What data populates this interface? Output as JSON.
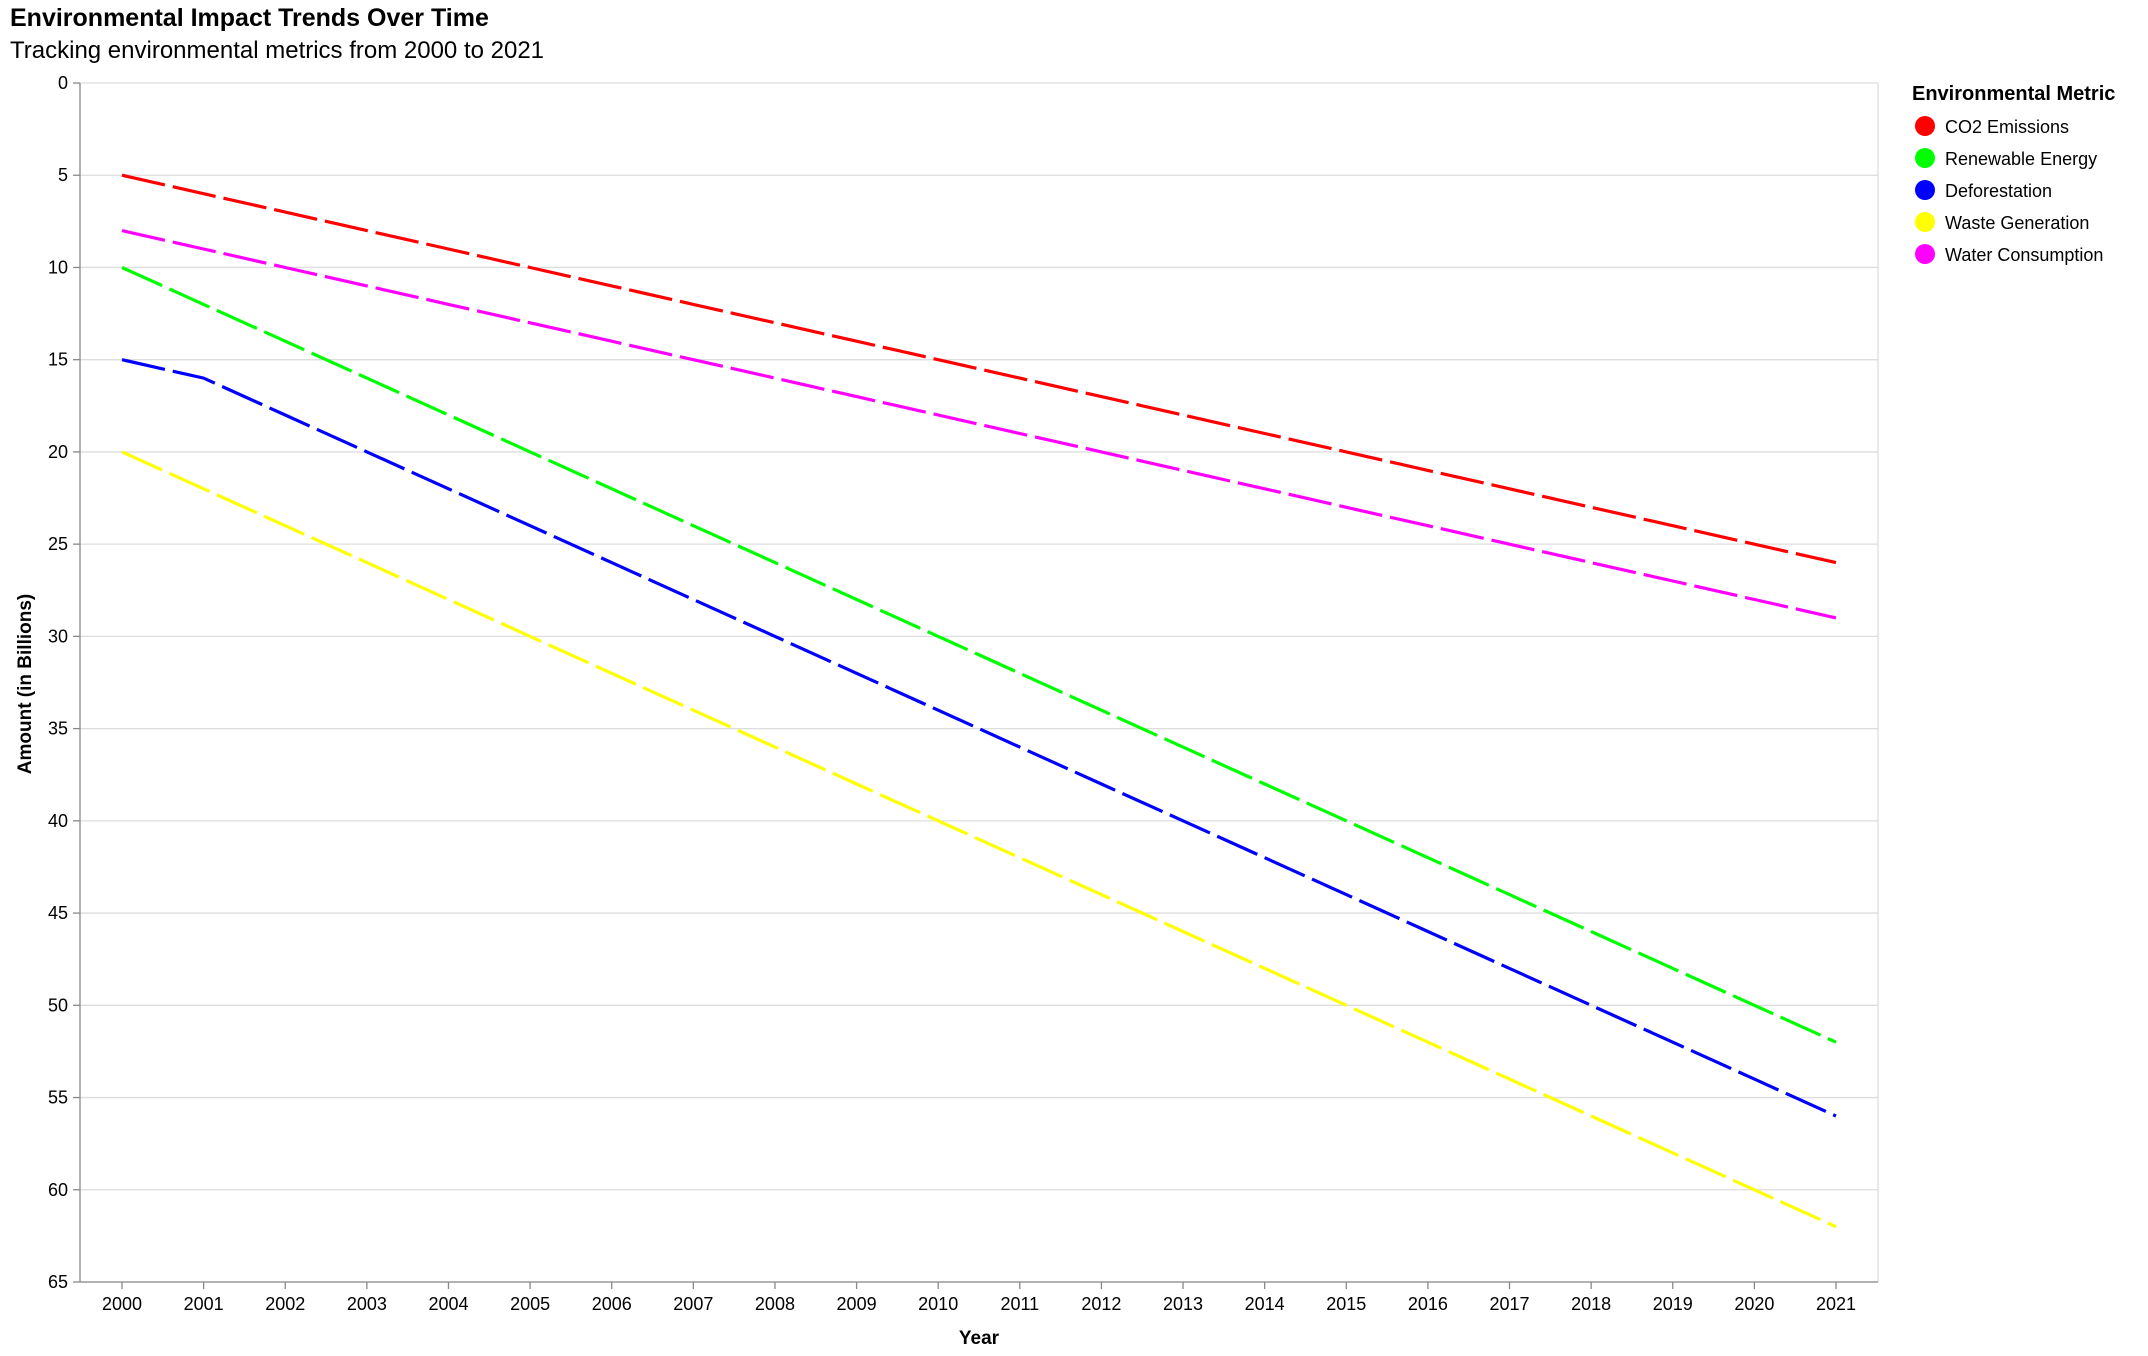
{
  "chart_data": {
    "type": "line",
    "title": "Environmental Impact Trends Over Time",
    "subtitle": "Tracking environmental metrics from 2000 to 2021",
    "xlabel": "Year",
    "ylabel": "Amount (in Billions)",
    "x": [
      2000,
      2001,
      2002,
      2003,
      2004,
      2005,
      2006,
      2007,
      2008,
      2009,
      2010,
      2011,
      2012,
      2013,
      2014,
      2015,
      2016,
      2017,
      2018,
      2019,
      2020,
      2021
    ],
    "ylim": [
      0,
      65
    ],
    "y_reversed": true,
    "y_ticks": [
      0,
      5,
      10,
      15,
      20,
      25,
      30,
      35,
      40,
      45,
      50,
      55,
      60,
      65
    ],
    "grid": "horizontal",
    "line_style": "dashed",
    "legend": {
      "title": "Environmental Metric",
      "position": "top-right"
    },
    "series": [
      {
        "name": "CO2 Emissions",
        "color": "#ff0000",
        "values": [
          5,
          6,
          7,
          8,
          9,
          10,
          11,
          12,
          13,
          14,
          15,
          16,
          17,
          18,
          19,
          20,
          21,
          22,
          23,
          24,
          25,
          26
        ]
      },
      {
        "name": "Renewable Energy",
        "color": "#00ff00",
        "values": [
          10,
          12,
          14,
          16,
          18,
          20,
          22,
          24,
          26,
          28,
          30,
          32,
          34,
          36,
          38,
          40,
          42,
          44,
          46,
          48,
          50,
          52
        ]
      },
      {
        "name": "Deforestation",
        "color": "#0000ff",
        "values": [
          15,
          16,
          18,
          20,
          22,
          24,
          26,
          28,
          30,
          32,
          34,
          36,
          38,
          40,
          42,
          44,
          46,
          48,
          50,
          52,
          54,
          56
        ]
      },
      {
        "name": "Waste Generation",
        "color": "#ffff00",
        "values": [
          20,
          22,
          24,
          26,
          28,
          30,
          32,
          34,
          36,
          38,
          40,
          42,
          44,
          46,
          48,
          50,
          52,
          54,
          56,
          58,
          60,
          62
        ]
      },
      {
        "name": "Water Consumption",
        "color": "#ff00ff",
        "values": [
          8,
          9,
          10,
          11,
          12,
          13,
          14,
          15,
          16,
          17,
          18,
          19,
          20,
          21,
          22,
          23,
          24,
          25,
          26,
          27,
          28,
          29
        ]
      }
    ]
  }
}
